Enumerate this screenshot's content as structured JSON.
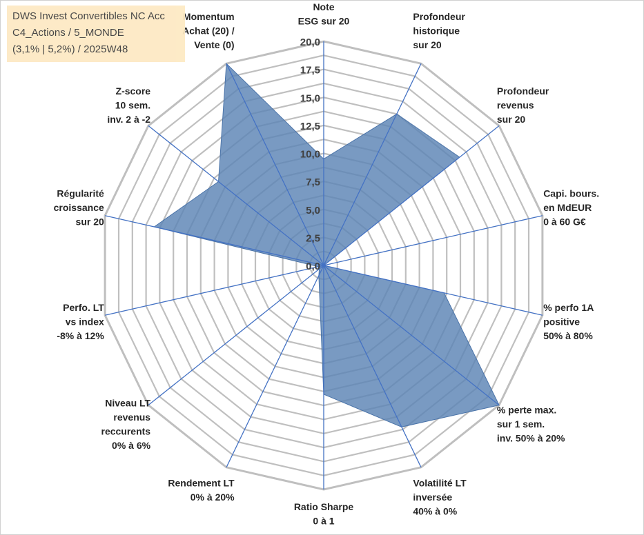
{
  "title_box": {
    "line1": "DWS Invest Convertibles NC Acc",
    "line2": "C4_Actions / 5_MONDE",
    "line3": "(3,1% | 5,2%) / 2025W48"
  },
  "chart_data": {
    "type": "radar",
    "title": "DWS Invest Convertibles NC Acc",
    "r_range": [
      0,
      20
    ],
    "r_ticks": [
      "0,0",
      "2,5",
      "5,0",
      "7,5",
      "10,0",
      "12,5",
      "15,0",
      "17,5",
      "20,0"
    ],
    "gridlines": true,
    "fill_color": "#5b84b4",
    "grid_color": "#bfbfbf",
    "spoke_color": "#4472c4",
    "axes": [
      {
        "lines": [
          "Note",
          "ESG sur 20"
        ],
        "value": 9.5
      },
      {
        "lines": [
          "Profondeur",
          "historique",
          "sur 20"
        ],
        "value": 15
      },
      {
        "lines": [
          "Profondeur",
          "revenus",
          "sur 20"
        ],
        "value": 15.5
      },
      {
        "lines": [
          "Capi. bours.",
          "en MdEUR",
          "0 à 60 G€"
        ],
        "value": 0
      },
      {
        "lines": [
          "% perfo 1A",
          "positive",
          "50% à 80%"
        ],
        "value": 11
      },
      {
        "lines": [
          "% perte max.",
          "sur 1 sem.",
          "inv. 50% à 20%"
        ],
        "value": 20
      },
      {
        "lines": [
          "Volatilité LT",
          "inversée",
          "40% à 0%"
        ],
        "value": 16
      },
      {
        "lines": [
          "Ratio Sharpe",
          "0 à 1"
        ],
        "value": 11.5
      },
      {
        "lines": [
          "Rendement LT",
          "0% à 20%"
        ],
        "value": 1
      },
      {
        "lines": [
          "Niveau LT",
          "revenus",
          "reccurents",
          "0% à 6%"
        ],
        "value": 0.5
      },
      {
        "lines": [
          "Perfo. LT",
          "vs index",
          "-8% à 12%"
        ],
        "value": 0.5
      },
      {
        "lines": [
          "Régularité",
          "croissance",
          "sur 20"
        ],
        "value": 15.5
      },
      {
        "lines": [
          "Z-score",
          "10 sem.",
          "inv. 2 à -2"
        ],
        "value": 12
      },
      {
        "lines": [
          "Momentum",
          "Achat (20) /",
          "Vente (0)"
        ],
        "value": 20
      }
    ]
  }
}
